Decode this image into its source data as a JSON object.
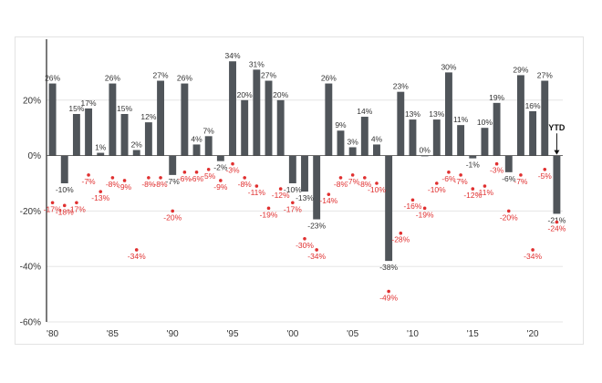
{
  "chart_data": {
    "type": "bar",
    "ylim": [
      -60,
      40
    ],
    "yticks": [
      {
        "value": 20,
        "label": "20%"
      },
      {
        "value": 0,
        "label": "0%"
      },
      {
        "value": -20,
        "label": "-20%"
      },
      {
        "value": -40,
        "label": "-40%"
      },
      {
        "value": -60,
        "label": "-60%"
      }
    ],
    "xticks": [
      {
        "year": 1980,
        "label": "'80"
      },
      {
        "year": 1985,
        "label": "'85"
      },
      {
        "year": 1990,
        "label": "'90"
      },
      {
        "year": 1995,
        "label": "'95"
      },
      {
        "year": 2000,
        "label": "'00"
      },
      {
        "year": 2005,
        "label": "'05"
      },
      {
        "year": 2010,
        "label": "'10"
      },
      {
        "year": 2015,
        "label": "'15"
      },
      {
        "year": 2020,
        "label": "'20"
      }
    ],
    "years": [
      1980,
      1981,
      1982,
      1983,
      1984,
      1985,
      1986,
      1987,
      1988,
      1989,
      1990,
      1991,
      1992,
      1993,
      1994,
      1995,
      1996,
      1997,
      1998,
      1999,
      2000,
      2001,
      2002,
      2003,
      2004,
      2005,
      2006,
      2007,
      2008,
      2009,
      2010,
      2011,
      2012,
      2013,
      2014,
      2015,
      2016,
      2017,
      2018,
      2019,
      2020,
      2021,
      2022
    ],
    "series": [
      {
        "values": [
          26,
          -10,
          15,
          17,
          1,
          26,
          15,
          2,
          12,
          27,
          -7,
          26,
          4,
          7,
          -2,
          34,
          20,
          31,
          27,
          20,
          -10,
          -13,
          -23,
          26,
          9,
          3,
          14,
          4,
          -38,
          23,
          13,
          0,
          13,
          30,
          11,
          -1,
          10,
          19,
          -6,
          29,
          16,
          27,
          -21
        ],
        "labels": [
          "26%",
          "-10%",
          "15%",
          "17%",
          "1%",
          "26%",
          "15%",
          "2%",
          "12%",
          "27%",
          "-7%",
          "26%",
          "4%",
          "7%",
          "-2%",
          "34%",
          "20%",
          "31%",
          "27%",
          "20%",
          "-10%",
          "-13%",
          "-23%",
          "26%",
          "9%",
          "3%",
          "14%",
          "4%",
          "-38%",
          "23%",
          "13%",
          "0%",
          "13%",
          "30%",
          "11%",
          "-1%",
          "10%",
          "19%",
          "-6%",
          "29%",
          "16%",
          "27%",
          "-21%"
        ],
        "color": "#50555a"
      },
      {
        "values": [
          -17,
          -18,
          -17,
          -7,
          -13,
          -8,
          -9,
          -34,
          -8,
          -8,
          -20,
          -6,
          -6,
          -5,
          -9,
          -3,
          -8,
          -11,
          -19,
          -12,
          -17,
          -30,
          -34,
          -14,
          -8,
          -7,
          -8,
          -10,
          -49,
          -28,
          -16,
          -19,
          -10,
          -6,
          -7,
          -12,
          -11,
          -3,
          -20,
          -7,
          -34,
          -5,
          -24
        ],
        "labels": [
          "-17%",
          "-18%",
          "-17%",
          "-7%",
          "-13%",
          "-8%",
          "-9%",
          "-34%",
          "-8%",
          "-8%",
          "-20%",
          "-6%",
          "-6%",
          "-5%",
          "-9%",
          "-3%",
          "-8%",
          "-11%",
          "-19%",
          "-12%",
          "-17%",
          "-30%",
          "-34%",
          "-14%",
          "-8%",
          "-7%",
          "-8%",
          "-10%",
          "-49%",
          "-28%",
          "-16%",
          "-19%",
          "-10%",
          "-6%",
          "-7%",
          "-12%",
          "-11%",
          "-3%",
          "-20%",
          "-7%",
          "-34%",
          "-5%",
          "-24%"
        ],
        "color": "#e03030"
      }
    ],
    "annotations": [
      {
        "year": 2022,
        "text": "YTD"
      }
    ],
    "grid": true
  }
}
